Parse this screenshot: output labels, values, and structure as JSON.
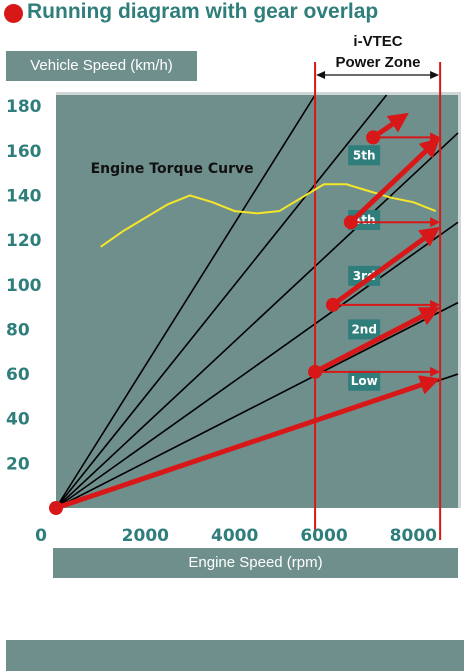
{
  "title": "Running diagram with gear overlap",
  "colors": {
    "title": "#2f7e7c",
    "panel": "#6f8f8c",
    "plot_bg": "#6f8f8c",
    "bullet": "#d81818",
    "gear_lines": "#000000",
    "torque": "#f5e62a",
    "shift": "#d81818",
    "zone": "#d81818",
    "gear_label_bg": "#2f7e7c"
  },
  "chart_data": {
    "type": "line",
    "title": "Running diagram with gear overlap",
    "xlabel": "Engine Speed (rpm)",
    "ylabel": "Vehicle Speed (km/h)",
    "xlim": [
      0,
      9000
    ],
    "ylim": [
      0,
      185
    ],
    "xticks": [
      0,
      2000,
      4000,
      6000,
      8000
    ],
    "yticks": [
      20,
      40,
      60,
      80,
      100,
      120,
      140,
      160,
      180
    ],
    "gear_lines": [
      {
        "name": "Low",
        "end": [
          9000,
          60
        ]
      },
      {
        "name": "2nd",
        "end": [
          9000,
          92
        ]
      },
      {
        "name": "3rd",
        "end": [
          9000,
          128
        ]
      },
      {
        "name": "4th",
        "end": [
          9000,
          168
        ]
      },
      {
        "end": [
          7400,
          185
        ]
      },
      {
        "end": [
          5800,
          185
        ]
      }
    ],
    "gear_labels": [
      {
        "text": "Low",
        "x": 6900,
        "y": 57
      },
      {
        "text": "2nd",
        "x": 6900,
        "y": 80
      },
      {
        "text": "3rd",
        "x": 6900,
        "y": 104
      },
      {
        "text": "4th",
        "x": 6900,
        "y": 129
      },
      {
        "text": "5th",
        "x": 6900,
        "y": 158
      }
    ],
    "torque_curve": {
      "name": "Engine Torque Curve",
      "x": [
        1000,
        1500,
        2000,
        2500,
        3000,
        3500,
        4000,
        4500,
        5000,
        5500,
        6000,
        6500,
        7000,
        7500,
        8000,
        8500
      ],
      "y": [
        117,
        124,
        130,
        136,
        140,
        137,
        133,
        132,
        133,
        139,
        145,
        145,
        142,
        139,
        137,
        133
      ]
    },
    "shift_arrows": [
      {
        "from": [
          0,
          0
        ],
        "to": [
          8600,
          58
        ]
      },
      {
        "from": [
          5800,
          61
        ],
        "to": [
          8600,
          90
        ]
      },
      {
        "from": [
          6200,
          91
        ],
        "to": [
          8600,
          126
        ]
      },
      {
        "from": [
          6600,
          128
        ],
        "to": [
          8600,
          166
        ]
      },
      {
        "from": [
          7100,
          166
        ],
        "to": [
          7900,
          177
        ]
      }
    ],
    "rev_limit_lines": [
      {
        "from": [
          5800,
          61
        ],
        "to": [
          8600,
          61
        ]
      },
      {
        "from": [
          6200,
          91
        ],
        "to": [
          8600,
          91
        ]
      },
      {
        "from": [
          6600,
          128
        ],
        "to": [
          8600,
          128
        ]
      },
      {
        "from": [
          7100,
          166
        ],
        "to": [
          8600,
          166
        ]
      }
    ],
    "shift_points": [
      [
        0,
        0
      ],
      [
        5800,
        61
      ],
      [
        6200,
        91
      ],
      [
        6600,
        128
      ],
      [
        7100,
        166
      ]
    ],
    "vtec_zone": {
      "label_line1": "i-VTEC",
      "label_line2": "Power Zone",
      "from": 5800,
      "to": 8600
    },
    "annotations": [
      {
        "text": "Engine Torque Curve",
        "x": 2600,
        "y": 150
      }
    ],
    "grid": false,
    "legend": "none"
  }
}
